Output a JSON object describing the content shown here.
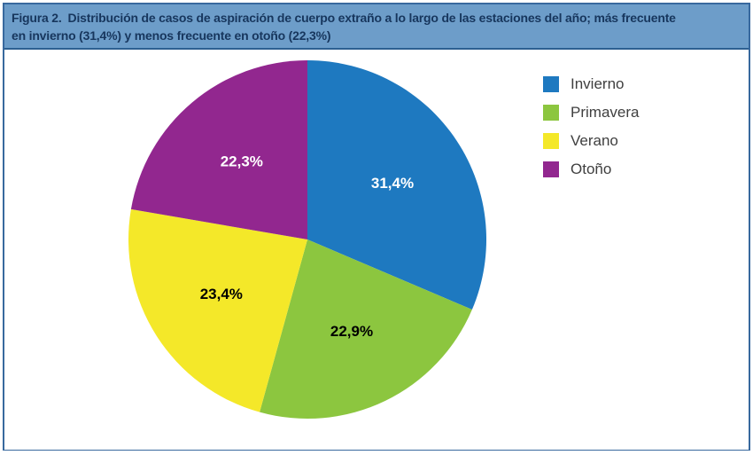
{
  "header": {
    "figure_label": "Figura 2.",
    "line1": "Distribución de casos de aspiración de cuerpo extraño a lo largo de las estaciones del año; más frecuente",
    "line2": "en invierno (31,4%) y menos frecuente en otoño (22,3%)",
    "background_color": "#6D9DC9",
    "border_color": "#2D6091",
    "text_color": "#17365D"
  },
  "figure_border_color": "#38699E",
  "chart_data": {
    "type": "pie",
    "title": "",
    "categories": [
      "Invierno",
      "Primavera",
      "Verano",
      "Otoño"
    ],
    "values": [
      31.4,
      22.9,
      23.4,
      22.3
    ],
    "labels": [
      "31,4%",
      "22,9%",
      "23,4%",
      "22,3%"
    ],
    "colors": [
      "#1E79C0",
      "#8CC63F",
      "#F4E829",
      "#92278F"
    ],
    "label_colors": [
      "#FFFFFF",
      "#000000",
      "#000000",
      "#FFFFFF"
    ],
    "start_angle_deg": 0,
    "direction": "clockwise",
    "legend_position": "right",
    "legend_text_color": "#3F3F3F"
  }
}
